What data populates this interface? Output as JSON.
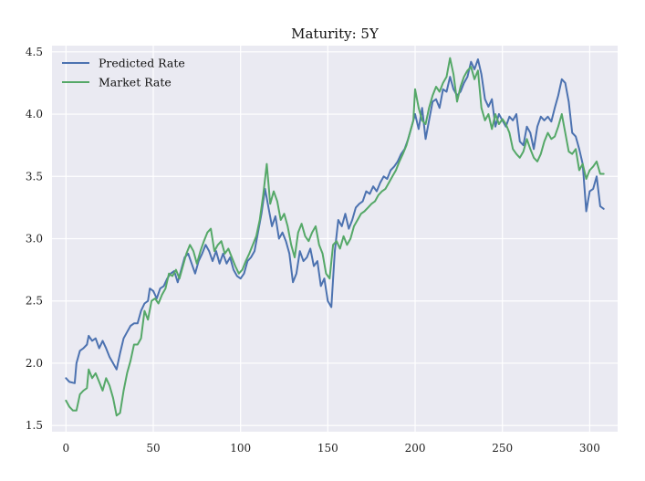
{
  "chart_data": {
    "type": "line",
    "title": "Maturity: 5Y",
    "xlabel": "",
    "ylabel": "",
    "xlim": [
      -8,
      316
    ],
    "ylim": [
      1.45,
      4.55
    ],
    "xticks": [
      0,
      50,
      100,
      150,
      200,
      250,
      300
    ],
    "xtick_labels": [
      "0",
      "50",
      "100",
      "150",
      "200",
      "250",
      "300"
    ],
    "yticks": [
      1.5,
      2.0,
      2.5,
      3.0,
      3.5,
      4.0,
      4.5
    ],
    "ytick_labels": [
      "1.5",
      "2.0",
      "2.5",
      "3.0",
      "3.5",
      "4.0",
      "4.5"
    ],
    "grid": true,
    "legend_position": "top-left",
    "colors": {
      "predicted": "#4c72b0",
      "market": "#55a868",
      "background": "#eaeaf2",
      "grid": "#ffffff"
    },
    "series": [
      {
        "name": "Predicted Rate",
        "color": "#4c72b0",
        "points": [
          [
            0,
            1.88
          ],
          [
            2,
            1.85
          ],
          [
            5,
            1.84
          ],
          [
            6,
            2.0
          ],
          [
            8,
            2.1
          ],
          [
            10,
            2.12
          ],
          [
            12,
            2.15
          ],
          [
            13,
            2.22
          ],
          [
            15,
            2.18
          ],
          [
            17,
            2.2
          ],
          [
            19,
            2.12
          ],
          [
            21,
            2.18
          ],
          [
            23,
            2.12
          ],
          [
            25,
            2.05
          ],
          [
            27,
            2.0
          ],
          [
            29,
            1.95
          ],
          [
            31,
            2.08
          ],
          [
            33,
            2.2
          ],
          [
            35,
            2.25
          ],
          [
            37,
            2.3
          ],
          [
            39,
            2.32
          ],
          [
            41,
            2.32
          ],
          [
            43,
            2.42
          ],
          [
            45,
            2.48
          ],
          [
            47,
            2.5
          ],
          [
            48,
            2.6
          ],
          [
            50,
            2.58
          ],
          [
            52,
            2.52
          ],
          [
            54,
            2.6
          ],
          [
            56,
            2.62
          ],
          [
            58,
            2.68
          ],
          [
            60,
            2.72
          ],
          [
            62,
            2.74
          ],
          [
            64,
            2.65
          ],
          [
            66,
            2.75
          ],
          [
            68,
            2.85
          ],
          [
            70,
            2.88
          ],
          [
            72,
            2.8
          ],
          [
            74,
            2.72
          ],
          [
            76,
            2.82
          ],
          [
            78,
            2.88
          ],
          [
            80,
            2.95
          ],
          [
            82,
            2.9
          ],
          [
            84,
            2.82
          ],
          [
            86,
            2.9
          ],
          [
            88,
            2.8
          ],
          [
            90,
            2.88
          ],
          [
            92,
            2.8
          ],
          [
            94,
            2.85
          ],
          [
            96,
            2.75
          ],
          [
            98,
            2.7
          ],
          [
            100,
            2.68
          ],
          [
            102,
            2.72
          ],
          [
            104,
            2.82
          ],
          [
            106,
            2.85
          ],
          [
            108,
            2.9
          ],
          [
            110,
            3.05
          ],
          [
            112,
            3.2
          ],
          [
            114,
            3.4
          ],
          [
            116,
            3.25
          ],
          [
            118,
            3.1
          ],
          [
            120,
            3.18
          ],
          [
            122,
            3.0
          ],
          [
            124,
            3.05
          ],
          [
            126,
            2.98
          ],
          [
            128,
            2.88
          ],
          [
            130,
            2.65
          ],
          [
            132,
            2.72
          ],
          [
            134,
            2.9
          ],
          [
            136,
            2.82
          ],
          [
            138,
            2.85
          ],
          [
            140,
            2.92
          ],
          [
            142,
            2.78
          ],
          [
            144,
            2.82
          ],
          [
            146,
            2.62
          ],
          [
            148,
            2.68
          ],
          [
            150,
            2.5
          ],
          [
            152,
            2.45
          ],
          [
            154,
            2.9
          ],
          [
            156,
            3.15
          ],
          [
            158,
            3.1
          ],
          [
            160,
            3.2
          ],
          [
            162,
            3.08
          ],
          [
            164,
            3.15
          ],
          [
            166,
            3.25
          ],
          [
            168,
            3.28
          ],
          [
            170,
            3.3
          ],
          [
            172,
            3.38
          ],
          [
            174,
            3.36
          ],
          [
            176,
            3.42
          ],
          [
            178,
            3.38
          ],
          [
            180,
            3.45
          ],
          [
            182,
            3.5
          ],
          [
            184,
            3.48
          ],
          [
            186,
            3.55
          ],
          [
            188,
            3.58
          ],
          [
            190,
            3.62
          ],
          [
            192,
            3.68
          ],
          [
            194,
            3.72
          ],
          [
            196,
            3.8
          ],
          [
            198,
            3.9
          ],
          [
            200,
            4.0
          ],
          [
            202,
            3.88
          ],
          [
            204,
            4.05
          ],
          [
            206,
            3.8
          ],
          [
            208,
            3.95
          ],
          [
            210,
            4.1
          ],
          [
            212,
            4.12
          ],
          [
            214,
            4.05
          ],
          [
            216,
            4.2
          ],
          [
            218,
            4.18
          ],
          [
            220,
            4.3
          ],
          [
            222,
            4.2
          ],
          [
            224,
            4.15
          ],
          [
            226,
            4.18
          ],
          [
            228,
            4.25
          ],
          [
            230,
            4.3
          ],
          [
            232,
            4.42
          ],
          [
            234,
            4.36
          ],
          [
            236,
            4.44
          ],
          [
            238,
            4.32
          ],
          [
            240,
            4.12
          ],
          [
            242,
            4.06
          ],
          [
            244,
            4.12
          ],
          [
            246,
            3.9
          ],
          [
            248,
            4.0
          ],
          [
            250,
            3.95
          ],
          [
            252,
            3.9
          ],
          [
            254,
            3.98
          ],
          [
            256,
            3.95
          ],
          [
            258,
            4.0
          ],
          [
            260,
            3.78
          ],
          [
            262,
            3.75
          ],
          [
            264,
            3.9
          ],
          [
            266,
            3.85
          ],
          [
            268,
            3.72
          ],
          [
            270,
            3.9
          ],
          [
            272,
            3.98
          ],
          [
            274,
            3.95
          ],
          [
            276,
            3.98
          ],
          [
            278,
            3.94
          ],
          [
            280,
            4.05
          ],
          [
            282,
            4.15
          ],
          [
            284,
            4.28
          ],
          [
            286,
            4.25
          ],
          [
            288,
            4.1
          ],
          [
            290,
            3.85
          ],
          [
            292,
            3.82
          ],
          [
            294,
            3.72
          ],
          [
            296,
            3.6
          ],
          [
            298,
            3.22
          ],
          [
            300,
            3.38
          ],
          [
            302,
            3.4
          ],
          [
            304,
            3.5
          ],
          [
            306,
            3.26
          ],
          [
            308,
            3.24
          ]
        ]
      },
      {
        "name": "Market Rate",
        "color": "#55a868",
        "points": [
          [
            0,
            1.7
          ],
          [
            2,
            1.65
          ],
          [
            4,
            1.62
          ],
          [
            6,
            1.62
          ],
          [
            8,
            1.75
          ],
          [
            10,
            1.78
          ],
          [
            12,
            1.8
          ],
          [
            13,
            1.95
          ],
          [
            15,
            1.88
          ],
          [
            17,
            1.92
          ],
          [
            19,
            1.85
          ],
          [
            21,
            1.78
          ],
          [
            23,
            1.88
          ],
          [
            25,
            1.82
          ],
          [
            27,
            1.72
          ],
          [
            29,
            1.58
          ],
          [
            31,
            1.6
          ],
          [
            33,
            1.78
          ],
          [
            35,
            1.92
          ],
          [
            37,
            2.02
          ],
          [
            39,
            2.15
          ],
          [
            41,
            2.15
          ],
          [
            43,
            2.2
          ],
          [
            45,
            2.42
          ],
          [
            47,
            2.35
          ],
          [
            49,
            2.5
          ],
          [
            51,
            2.52
          ],
          [
            53,
            2.48
          ],
          [
            55,
            2.55
          ],
          [
            57,
            2.6
          ],
          [
            59,
            2.72
          ],
          [
            61,
            2.7
          ],
          [
            63,
            2.75
          ],
          [
            65,
            2.68
          ],
          [
            67,
            2.78
          ],
          [
            69,
            2.88
          ],
          [
            71,
            2.95
          ],
          [
            73,
            2.9
          ],
          [
            75,
            2.8
          ],
          [
            77,
            2.9
          ],
          [
            79,
            2.98
          ],
          [
            81,
            3.05
          ],
          [
            83,
            3.08
          ],
          [
            85,
            2.9
          ],
          [
            87,
            2.95
          ],
          [
            89,
            2.98
          ],
          [
            91,
            2.88
          ],
          [
            93,
            2.92
          ],
          [
            95,
            2.85
          ],
          [
            97,
            2.78
          ],
          [
            99,
            2.72
          ],
          [
            101,
            2.75
          ],
          [
            103,
            2.82
          ],
          [
            105,
            2.88
          ],
          [
            107,
            2.95
          ],
          [
            109,
            3.02
          ],
          [
            111,
            3.15
          ],
          [
            113,
            3.35
          ],
          [
            115,
            3.6
          ],
          [
            117,
            3.28
          ],
          [
            119,
            3.38
          ],
          [
            121,
            3.3
          ],
          [
            123,
            3.15
          ],
          [
            125,
            3.2
          ],
          [
            127,
            3.1
          ],
          [
            129,
            2.95
          ],
          [
            131,
            2.85
          ],
          [
            133,
            3.05
          ],
          [
            135,
            3.12
          ],
          [
            137,
            3.02
          ],
          [
            139,
            2.98
          ],
          [
            141,
            3.05
          ],
          [
            143,
            3.1
          ],
          [
            145,
            2.95
          ],
          [
            147,
            2.88
          ],
          [
            149,
            2.72
          ],
          [
            151,
            2.68
          ],
          [
            153,
            2.95
          ],
          [
            155,
            2.98
          ],
          [
            157,
            2.92
          ],
          [
            159,
            3.02
          ],
          [
            161,
            2.95
          ],
          [
            163,
            3.0
          ],
          [
            165,
            3.1
          ],
          [
            167,
            3.15
          ],
          [
            169,
            3.2
          ],
          [
            171,
            3.22
          ],
          [
            173,
            3.25
          ],
          [
            175,
            3.28
          ],
          [
            177,
            3.3
          ],
          [
            179,
            3.35
          ],
          [
            181,
            3.38
          ],
          [
            183,
            3.4
          ],
          [
            185,
            3.45
          ],
          [
            187,
            3.5
          ],
          [
            189,
            3.55
          ],
          [
            191,
            3.62
          ],
          [
            193,
            3.68
          ],
          [
            195,
            3.75
          ],
          [
            197,
            3.85
          ],
          [
            199,
            3.95
          ],
          [
            200,
            4.2
          ],
          [
            202,
            4.05
          ],
          [
            204,
            3.95
          ],
          [
            206,
            3.92
          ],
          [
            208,
            4.05
          ],
          [
            210,
            4.15
          ],
          [
            212,
            4.22
          ],
          [
            214,
            4.18
          ],
          [
            216,
            4.25
          ],
          [
            218,
            4.3
          ],
          [
            220,
            4.45
          ],
          [
            222,
            4.32
          ],
          [
            224,
            4.1
          ],
          [
            226,
            4.22
          ],
          [
            228,
            4.3
          ],
          [
            230,
            4.35
          ],
          [
            232,
            4.38
          ],
          [
            234,
            4.28
          ],
          [
            236,
            4.35
          ],
          [
            238,
            4.05
          ],
          [
            240,
            3.95
          ],
          [
            242,
            4.0
          ],
          [
            244,
            3.88
          ],
          [
            246,
            4.0
          ],
          [
            248,
            3.92
          ],
          [
            250,
            3.96
          ],
          [
            252,
            3.92
          ],
          [
            254,
            3.85
          ],
          [
            256,
            3.72
          ],
          [
            258,
            3.68
          ],
          [
            260,
            3.65
          ],
          [
            262,
            3.7
          ],
          [
            264,
            3.8
          ],
          [
            266,
            3.72
          ],
          [
            268,
            3.65
          ],
          [
            270,
            3.62
          ],
          [
            272,
            3.68
          ],
          [
            274,
            3.78
          ],
          [
            276,
            3.85
          ],
          [
            278,
            3.8
          ],
          [
            280,
            3.82
          ],
          [
            282,
            3.9
          ],
          [
            284,
            4.0
          ],
          [
            286,
            3.85
          ],
          [
            288,
            3.7
          ],
          [
            290,
            3.68
          ],
          [
            292,
            3.72
          ],
          [
            294,
            3.55
          ],
          [
            296,
            3.6
          ],
          [
            298,
            3.48
          ],
          [
            300,
            3.55
          ],
          [
            302,
            3.58
          ],
          [
            304,
            3.62
          ],
          [
            306,
            3.52
          ],
          [
            308,
            3.52
          ]
        ]
      }
    ]
  }
}
